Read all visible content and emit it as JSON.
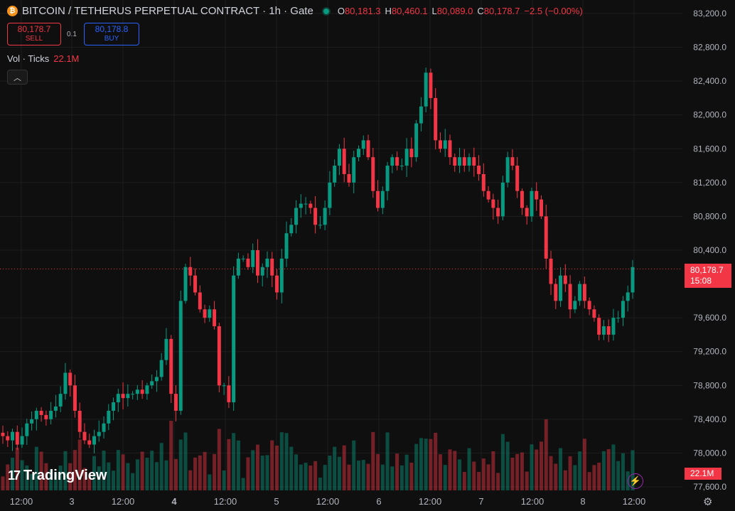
{
  "header": {
    "coin_icon": "bitcoin-icon",
    "symbol": "BITCOIN / TETHERUS PERPETUAL CONTRACT · 1h · Gate",
    "ohlc": [
      {
        "key": "O",
        "value": "80,181.3"
      },
      {
        "key": "H",
        "value": "80,460.1"
      },
      {
        "key": "L",
        "value": "80,089.0"
      },
      {
        "key": "C",
        "value": "80,178.7"
      }
    ],
    "change": "−2.5 (−0.00%)"
  },
  "trade": {
    "sell_price": "80,178.7",
    "sell_label": "SELL",
    "spread": "0.1",
    "buy_price": "80,178.8",
    "buy_label": "BUY"
  },
  "volume_legend": {
    "label": "Vol · Ticks",
    "value": "22.1M"
  },
  "price_tag": {
    "price": "80,178.7",
    "countdown": "15:08"
  },
  "volume_tag": "22.1M",
  "logo_text": "TradingView",
  "colors": {
    "up": "#089981",
    "down": "#f23645",
    "bg": "#0f0f0f",
    "grid": "#1e1e1e"
  },
  "chart_data": {
    "type": "candlestick",
    "y_ticks": [
      "83,200.0",
      "82,800.0",
      "82,400.0",
      "82,000.0",
      "81,600.0",
      "81,200.0",
      "80,800.0",
      "80,400.0",
      "79,600.0",
      "79,200.0",
      "78,800.0",
      "78,400.0",
      "78,000.0",
      "77,600.0"
    ],
    "ylim": [
      77500,
      83300
    ],
    "x_ticks": [
      "12:00",
      "3",
      "12:00",
      "4",
      "12:00",
      "5",
      "12:00",
      "6",
      "12:00",
      "7",
      "12:00",
      "8",
      "12:00"
    ],
    "last_price": 80178.7,
    "closes": [
      78200,
      78150,
      78250,
      78100,
      78200,
      78350,
      78400,
      78500,
      78450,
      78400,
      78500,
      78550,
      78700,
      78950,
      78800,
      78500,
      78250,
      78150,
      78100,
      78200,
      78250,
      78350,
      78500,
      78600,
      78700,
      78650,
      78700,
      78700,
      78750,
      78700,
      78800,
      78850,
      78900,
      79100,
      79350,
      78700,
      78500,
      79800,
      80200,
      80100,
      79900,
      79700,
      79600,
      79700,
      79500,
      78800,
      78800,
      78600,
      80100,
      80300,
      80300,
      80200,
      80400,
      80100,
      80200,
      80300,
      80100,
      79900,
      80300,
      80600,
      80700,
      80900,
      80950,
      80950,
      80900,
      80700,
      80700,
      80900,
      81200,
      81400,
      81600,
      81300,
      81200,
      81500,
      81600,
      81700,
      81500,
      81100,
      80900,
      81100,
      81400,
      81500,
      81400,
      81400,
      81600,
      81500,
      81900,
      82100,
      82500,
      82200,
      81700,
      81600,
      81700,
      81500,
      81400,
      81500,
      81400,
      81500,
      81400,
      81300,
      81100,
      81000,
      80900,
      80800,
      81200,
      81500,
      81400,
      81100,
      80900,
      80800,
      81100,
      81000,
      80800,
      80300,
      80000,
      79800,
      80100,
      80000,
      79700,
      79800,
      80000,
      79800,
      79700,
      79600,
      79400,
      79500,
      79400,
      79600,
      79600,
      79800,
      79900,
      80200
    ]
  }
}
